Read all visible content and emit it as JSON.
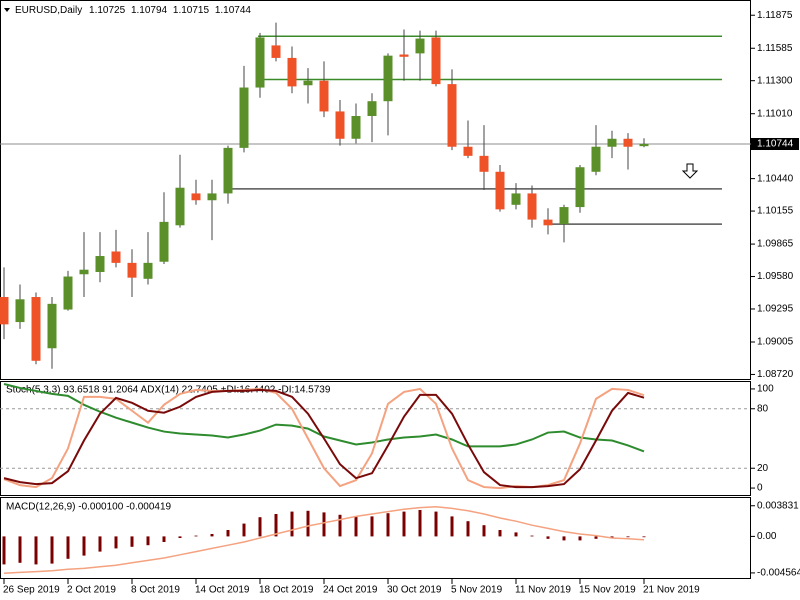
{
  "chart_data": [
    {
      "type": "candlestick",
      "title": "EURUSD,Daily",
      "categories": [
        "26 Sep 2019",
        null,
        null,
        null,
        "2 Oct 2019",
        null,
        null,
        null,
        "8 Oct 2019",
        null,
        null,
        null,
        "14 Oct 2019",
        null,
        null,
        null,
        "18 Oct 2019",
        null,
        null,
        null,
        "24 Oct 2019",
        null,
        null,
        null,
        "30 Oct 2019",
        null,
        null,
        null,
        "5 Nov 2019",
        null,
        null,
        null,
        "11 Nov 2019",
        null,
        null,
        null,
        "15 Nov 2019",
        null,
        null,
        null,
        "21 Nov 2019"
      ],
      "open": [
        1.094,
        1.0918,
        1.094,
        1.0895,
        1.0929,
        1.096,
        1.0962,
        1.098,
        1.097,
        1.0956,
        1.0971,
        1.1003,
        1.1031,
        1.1025,
        1.1031,
        1.1071,
        1.1124,
        1.1161,
        1.115,
        1.1126,
        1.113,
        1.1103,
        1.1079,
        1.1099,
        1.1112,
        1.1153,
        1.1154,
        1.1168,
        1.1127,
        1.1072,
        1.1064,
        1.105,
        1.1021,
        1.1031,
        1.1008,
        1.1004,
        1.1019,
        1.105,
        1.1072,
        1.1079,
        1.10725
      ],
      "high": [
        1.0966,
        1.0951,
        1.0944,
        1.094,
        1.0963,
        1.0997,
        1.0997,
        1.0999,
        1.0982,
        1.0997,
        1.1032,
        1.1065,
        1.1043,
        1.1043,
        1.1073,
        1.1143,
        1.1172,
        1.1181,
        1.116,
        1.1141,
        1.1147,
        1.1113,
        1.111,
        1.1119,
        1.1154,
        1.1175,
        1.1174,
        1.1174,
        1.114,
        1.1095,
        1.1091,
        1.1056,
        1.104,
        1.1038,
        1.1018,
        1.1021,
        1.1056,
        1.1091,
        1.1086,
        1.1084,
        1.10794
      ],
      "low": [
        1.0903,
        1.0912,
        1.0881,
        1.0877,
        1.0928,
        1.094,
        1.0953,
        1.0966,
        1.094,
        1.0951,
        1.0969,
        1.1001,
        1.1021,
        1.099,
        1.1022,
        1.1067,
        1.1115,
        1.1147,
        1.1119,
        1.111,
        1.1098,
        1.1073,
        1.1075,
        1.1076,
        1.1082,
        1.113,
        1.113,
        1.1125,
        1.1069,
        1.1062,
        1.1034,
        1.1015,
        1.1017,
        1.1001,
        1.0995,
        1.0988,
        1.1014,
        1.1047,
        1.1062,
        1.1052,
        1.10715
      ],
      "close": [
        1.0916,
        1.0938,
        1.0884,
        1.0934,
        1.0958,
        1.0964,
        1.0976,
        1.097,
        1.0957,
        1.097,
        1.1006,
        1.1036,
        1.1025,
        1.1031,
        1.1071,
        1.1124,
        1.1168,
        1.115,
        1.1125,
        1.113,
        1.1103,
        1.1079,
        1.1099,
        1.1112,
        1.1152,
        1.1151,
        1.1167,
        1.1127,
        1.1072,
        1.1064,
        1.105,
        1.1017,
        1.1031,
        1.1008,
        1.1003,
        1.1019,
        1.1054,
        1.1072,
        1.1079,
        1.1072,
        1.10744
      ],
      "up_color": "#5a8f29",
      "down_color": "#f05228",
      "levels": [
        {
          "value": 1.1169,
          "color": "#3a8a2a"
        },
        {
          "value": 1.1131,
          "color": "#3a8a2a"
        },
        {
          "value": 1.1035,
          "color": "#555555"
        },
        {
          "value": 1.1004,
          "color": "#555555"
        }
      ],
      "ylim": [
        1.0868,
        1.12
      ],
      "yticks": [
        1.11875,
        1.11585,
        {
          "value": 1.113,
          "label": "1.11300"
        },
        {
          "value": 1.1101,
          "label": "1.11010"
        },
        {
          "value": 1.1044,
          "label": "1.10440"
        },
        1.10155,
        1.09865,
        {
          "value": 1.0958,
          "label": "1.09580"
        },
        1.09295,
        1.09005,
        {
          "value": 1.0872,
          "label": "1.08720"
        }
      ]
    },
    {
      "type": "line",
      "title": "Stoch(5,3,3) 93.6518 91.2064 ADX(14) 22.7405 +DI:16.4402 -DI:14.5739",
      "series": [
        {
          "color": "#2e8b2e",
          "values": [
            105,
            101,
            98,
            95,
            93,
            84,
            77,
            71,
            66,
            61,
            57,
            55,
            54,
            53,
            51,
            54,
            58,
            64,
            63,
            60,
            52,
            48,
            44,
            46,
            49,
            51,
            52,
            54,
            49,
            42,
            42,
            42,
            44,
            49,
            56,
            57,
            51,
            49,
            48,
            43,
            37
          ]
        },
        {
          "color": "#f4a27f",
          "values": [
            9,
            3,
            1,
            10,
            40,
            92,
            92,
            90,
            78,
            66,
            84,
            95,
            99,
            98,
            98,
            99,
            100,
            96,
            80,
            50,
            20,
            2,
            8,
            35,
            85,
            97,
            100,
            85,
            40,
            8,
            1,
            0,
            2,
            1,
            3,
            8,
            45,
            90,
            100,
            99,
            93.6518
          ]
        },
        {
          "color": "#7a0a0a",
          "values": [
            10,
            6,
            4,
            5,
            17,
            48,
            75,
            91,
            86,
            78,
            76,
            82,
            92,
            97,
            98,
            98,
            99,
            98,
            92,
            75,
            50,
            24,
            10,
            15,
            43,
            72,
            94,
            94,
            75,
            44,
            16,
            3,
            1,
            1,
            2,
            4,
            19,
            48,
            78,
            96,
            91.2064
          ]
        }
      ],
      "ylim": [
        -7,
        107
      ],
      "yticks": [
        0,
        20,
        80,
        100
      ],
      "dashed_levels": [
        20,
        80
      ]
    },
    {
      "type": "macd",
      "title": "MACD(12,26,9) -0.000100 -0.000419",
      "series": [
        {
          "kind": "bar",
          "color": "#7a0000",
          "values": [
            -0.0035,
            -0.0033,
            -0.0035,
            -0.0034,
            -0.0028,
            -0.0024,
            -0.0019,
            -0.0015,
            -0.0013,
            -0.0011,
            -0.0007,
            -0.0002,
            0.0001,
            0.0003,
            0.0008,
            0.0016,
            0.0024,
            0.0028,
            0.0031,
            0.0032,
            0.003,
            0.0027,
            0.0025,
            0.0025,
            0.0029,
            0.0031,
            0.0033,
            0.0031,
            0.0025,
            0.0019,
            0.0014,
            0.0008,
            0.0005,
            0.0001,
            -0.0003,
            -0.0005,
            -0.0005,
            -0.0003,
            -0.0002,
            -0.0001,
            -0.0001
          ]
        },
        {
          "kind": "line",
          "color": "#f4a27f",
          "values": [
            -0.0046,
            -0.0045,
            -0.0044,
            -0.0043,
            -0.0041,
            -0.004,
            -0.0038,
            -0.0036,
            -0.0033,
            -0.003,
            -0.0027,
            -0.0023,
            -0.0019,
            -0.0015,
            -0.0011,
            -0.0007,
            -0.0002,
            0.0003,
            0.0008,
            0.0013,
            0.0017,
            0.0021,
            0.0025,
            0.0028,
            0.0031,
            0.0034,
            0.0036,
            0.0037,
            0.0035,
            0.0032,
            0.0028,
            0.0023,
            0.0019,
            0.0014,
            0.001,
            0.0006,
            0.0003,
            0.0001,
            -0.0002,
            -0.0003,
            -0.000419
          ]
        }
      ],
      "ylim": [
        -0.0052,
        0.0048
      ],
      "yticks": [
        0.003831,
        {
          "value": 0,
          "label": "0.00"
        },
        -0.004564
      ]
    }
  ]
}
